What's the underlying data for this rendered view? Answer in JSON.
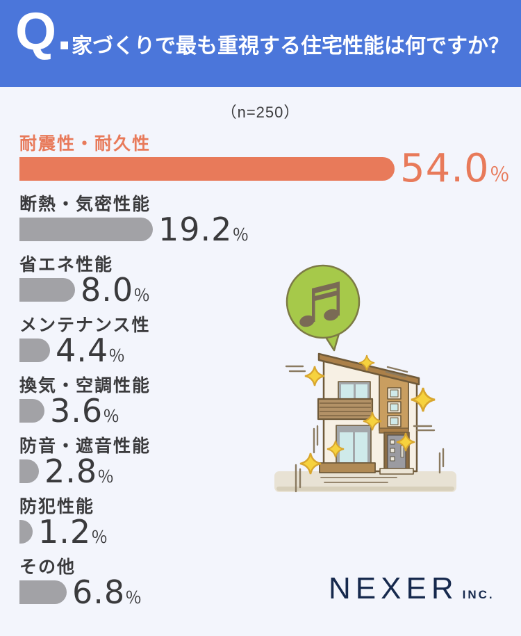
{
  "header": {
    "q_mark": "Q.",
    "title": "家づくりで最も重視する住宅性能は何ですか？"
  },
  "survey": {
    "sample_size_label": "（n=250）"
  },
  "chart_data": {
    "type": "bar",
    "orientation": "horizontal",
    "title": "家づくりで最も重視する住宅性能は何ですか？",
    "sample_size": 250,
    "categories": [
      "耐震性・耐久性",
      "断熱・気密性能",
      "省エネ性能",
      "メンテナンス性",
      "換気・空調性能",
      "防音・遮音性能",
      "防犯性能",
      "その他"
    ],
    "values": [
      54.0,
      19.2,
      8.0,
      4.4,
      3.6,
      2.8,
      1.2,
      6.8
    ],
    "value_labels": [
      "54.0",
      "19.2",
      "8.0",
      "4.4",
      "3.6",
      "2.8",
      "1.2",
      "6.8"
    ],
    "unit": "％",
    "xlim": [
      0,
      54
    ],
    "highlight_index": 0,
    "grid": false,
    "legend": false,
    "colors": {
      "highlight_bar": "#e87a5a",
      "default_bar": "#a2a2a6",
      "value_text": "#3a3a3c"
    }
  },
  "illustration": {
    "bubble_icon": "music-note-speech-bubble-icon",
    "house_icon": "sparkling-house-icon",
    "sparkle_icon": "sparkle-icon"
  },
  "footer": {
    "brand": "NEXER",
    "brand_suffix": "INC."
  },
  "colors": {
    "header_bg": "#4b76da",
    "page_bg": "#f3f5fc",
    "accent_coral": "#e87a5a",
    "bar_gray": "#a2a2a6",
    "brand_navy": "#16294d",
    "bubble_green": "#a6c94a"
  }
}
